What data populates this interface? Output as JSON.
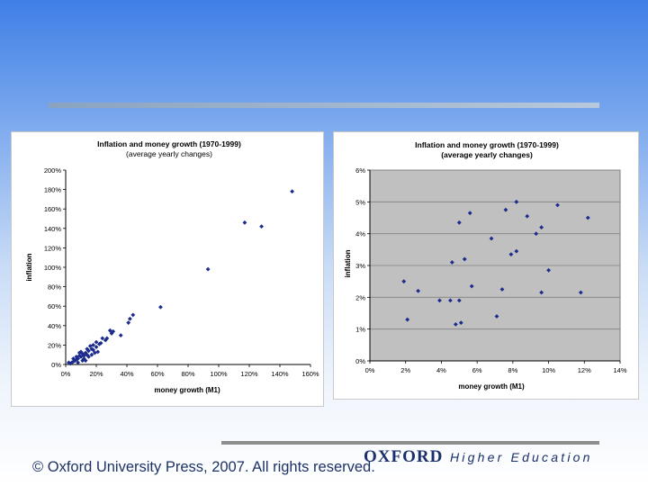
{
  "colors": {
    "marker": "#1c2c8c",
    "plot_bg_left": "#ffffff",
    "plot_bg_right": "#c0c0c0",
    "grid": "#808080"
  },
  "footer": {
    "copyright": "© Oxford University Press, 2007. All rights reserved.",
    "publisher": "OXFORD",
    "division": "Higher Education"
  },
  "chart_data": [
    {
      "type": "scatter",
      "title": "Inflation and money growth (1970-1999)",
      "subtitle": "(average yearly changes)",
      "xlabel": "money growth (M1)",
      "ylabel": "inflation",
      "xlim": [
        0,
        160
      ],
      "ylim": [
        0,
        200
      ],
      "x_ticks": [
        "0%",
        "20%",
        "40%",
        "60%",
        "80%",
        "100%",
        "120%",
        "140%",
        "160%"
      ],
      "y_ticks": [
        "0%",
        "20%",
        "40%",
        "60%",
        "80%",
        "100%",
        "120%",
        "140%",
        "160%",
        "180%",
        "200%"
      ],
      "grid": false,
      "points": [
        [
          148,
          178
        ],
        [
          117,
          146
        ],
        [
          128,
          142
        ],
        [
          93,
          98
        ],
        [
          62,
          59
        ],
        [
          44,
          51
        ],
        [
          42,
          47
        ],
        [
          41,
          43
        ],
        [
          36,
          30
        ],
        [
          30,
          32
        ],
        [
          29,
          35
        ],
        [
          31,
          34
        ],
        [
          27,
          27
        ],
        [
          24,
          27
        ],
        [
          26,
          25
        ],
        [
          23,
          22
        ],
        [
          22,
          21
        ],
        [
          20,
          23
        ],
        [
          18,
          20
        ],
        [
          17,
          16
        ],
        [
          16,
          19
        ],
        [
          19,
          12
        ],
        [
          18,
          15
        ],
        [
          15,
          14
        ],
        [
          14,
          10
        ],
        [
          13,
          12
        ],
        [
          12,
          9
        ],
        [
          11,
          11
        ],
        [
          10,
          8
        ],
        [
          9,
          9
        ],
        [
          8,
          6
        ],
        [
          7,
          5
        ],
        [
          6,
          4
        ],
        [
          5,
          3
        ],
        [
          4,
          2
        ],
        [
          3,
          1
        ],
        [
          2,
          2
        ],
        [
          10,
          13
        ],
        [
          14,
          16
        ],
        [
          12,
          6
        ],
        [
          7,
          8
        ],
        [
          15,
          8
        ],
        [
          20,
          18
        ],
        [
          5,
          6
        ],
        [
          9,
          12
        ],
        [
          13,
          4
        ],
        [
          17,
          10
        ],
        [
          21,
          13
        ],
        [
          8,
          2
        ],
        [
          11,
          4
        ]
      ]
    },
    {
      "type": "scatter",
      "title": "Inflation and money growth (1970-1999)",
      "subtitle": "(average yearly changes)",
      "xlabel": "money growth (M1)",
      "ylabel": "inflation",
      "xlim": [
        0,
        14
      ],
      "ylim": [
        0,
        6
      ],
      "x_ticks": [
        "0%",
        "2%",
        "4%",
        "6%",
        "8%",
        "10%",
        "12%",
        "14%"
      ],
      "y_ticks": [
        "0%",
        "1%",
        "2%",
        "3%",
        "4%",
        "5%",
        "6%"
      ],
      "grid": true,
      "points": [
        [
          1.9,
          2.5
        ],
        [
          2.1,
          1.3
        ],
        [
          2.7,
          2.2
        ],
        [
          3.9,
          1.9
        ],
        [
          4.5,
          1.9
        ],
        [
          4.6,
          3.1
        ],
        [
          4.8,
          1.15
        ],
        [
          5.0,
          1.9
        ],
        [
          5.0,
          4.35
        ],
        [
          5.1,
          1.2
        ],
        [
          5.3,
          3.2
        ],
        [
          5.6,
          4.65
        ],
        [
          5.7,
          2.35
        ],
        [
          6.8,
          3.85
        ],
        [
          7.1,
          1.4
        ],
        [
          7.4,
          2.25
        ],
        [
          7.6,
          4.75
        ],
        [
          7.9,
          3.35
        ],
        [
          8.2,
          3.45
        ],
        [
          8.2,
          5.0
        ],
        [
          8.8,
          4.55
        ],
        [
          9.3,
          4.0
        ],
        [
          9.6,
          4.2
        ],
        [
          9.6,
          2.15
        ],
        [
          10.0,
          2.85
        ],
        [
          10.5,
          4.9
        ],
        [
          11.8,
          2.15
        ],
        [
          12.2,
          4.5
        ]
      ]
    }
  ]
}
